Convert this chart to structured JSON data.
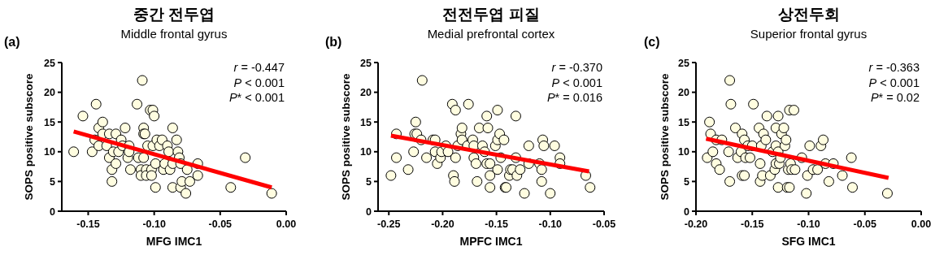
{
  "chart_data": [
    {
      "type": "scatter",
      "title": "중간 전두엽",
      "subtitle": "Middle frontal gyrus",
      "xlabel": "MFG IMC1",
      "ylabel": "SOPS positive subscore",
      "annotations": [
        "(a)",
        "r = -0.447",
        "P < 0.001",
        "P* < 0.001"
      ],
      "xlim": [
        -0.17,
        0
      ],
      "xticks": [
        -0.15,
        {
          "value": -0.1,
          "label": "-0.10"
        },
        -0.05,
        {
          "value": 0,
          "label": "0.00"
        }
      ],
      "ylim": [
        0,
        25
      ],
      "yticks": [
        0,
        5,
        10,
        15,
        20,
        25
      ],
      "marker": "circle",
      "series": [
        {
          "type": "scatter",
          "color": "#fffde0",
          "x": [
            -0.161,
            -0.154,
            -0.147,
            -0.144,
            -0.145,
            -0.142,
            -0.139,
            -0.142,
            -0.139,
            -0.136,
            -0.134,
            -0.134,
            -0.132,
            -0.132,
            -0.131,
            -0.129,
            -0.129,
            -0.127,
            -0.125,
            -0.124,
            -0.122,
            -0.12,
            -0.119,
            -0.118,
            -0.119,
            -0.113,
            -0.112,
            -0.11,
            -0.11,
            -0.109,
            -0.108,
            -0.108,
            -0.108,
            -0.107,
            -0.106,
            -0.106,
            -0.105,
            -0.103,
            -0.101,
            -0.1,
            -0.102,
            -0.102,
            -0.101,
            -0.099,
            -0.099,
            -0.098,
            -0.096,
            -0.094,
            -0.093,
            -0.092,
            -0.09,
            -0.089,
            -0.088,
            -0.086,
            -0.086,
            -0.086,
            -0.083,
            -0.082,
            -0.081,
            -0.08,
            -0.08,
            -0.079,
            -0.076,
            -0.075,
            -0.073,
            -0.067,
            -0.067,
            -0.042,
            -0.031,
            -0.011
          ],
          "values": [
            10,
            16,
            10,
            18,
            12,
            14,
            15,
            11,
            13,
            11,
            9,
            13,
            7,
            5,
            10,
            13,
            8,
            10,
            12,
            11,
            14,
            9,
            11,
            7,
            10,
            18,
            9,
            7,
            6,
            22,
            9,
            14,
            13,
            13,
            7,
            6,
            11,
            17,
            17,
            16,
            7,
            6,
            11,
            4,
            8,
            12,
            11,
            12,
            7,
            8,
            11,
            10,
            7,
            8,
            14,
            4,
            12,
            10,
            9,
            8,
            4,
            5,
            3,
            7,
            5,
            6,
            8,
            4,
            9,
            3
          ]
        },
        {
          "type": "line",
          "marker": "none",
          "color": "#ff0000",
          "x": [
            -0.161,
            -0.011
          ],
          "values": [
            13.4,
            4.0
          ]
        }
      ]
    },
    {
      "type": "scatter",
      "title": "전전두엽 피질",
      "subtitle": "Medial prefrontal cortex",
      "xlabel": "MPFC IMC1",
      "ylabel": "SOPS positive subscore",
      "annotations": [
        "(b)",
        "r = -0.370",
        "P < 0.001",
        "P* = 0.016"
      ],
      "xlim": [
        -0.26,
        -0.05
      ],
      "xticks": [
        -0.25,
        {
          "value": -0.2,
          "label": "-0.20"
        },
        -0.15,
        {
          "value": -0.1,
          "label": "-0.10"
        },
        -0.05
      ],
      "ylim": [
        0,
        25
      ],
      "yticks": [
        0,
        5,
        10,
        15,
        20,
        25
      ],
      "marker": "circle",
      "series": [
        {
          "type": "scatter",
          "color": "#fffde0",
          "x": [
            -0.248,
            -0.243,
            -0.243,
            -0.232,
            -0.227,
            -0.226,
            -0.225,
            -0.224,
            -0.22,
            -0.219,
            -0.215,
            -0.209,
            -0.207,
            -0.207,
            -0.205,
            -0.202,
            -0.201,
            -0.197,
            -0.195,
            -0.191,
            -0.19,
            -0.189,
            -0.188,
            -0.188,
            -0.186,
            -0.183,
            -0.182,
            -0.182,
            -0.177,
            -0.176,
            -0.172,
            -0.171,
            -0.171,
            -0.169,
            -0.168,
            -0.166,
            -0.163,
            -0.161,
            -0.159,
            -0.159,
            -0.158,
            -0.156,
            -0.156,
            -0.156,
            -0.151,
            -0.149,
            -0.149,
            -0.149,
            -0.147,
            -0.146,
            -0.143,
            -0.142,
            -0.141,
            -0.138,
            -0.137,
            -0.135,
            -0.132,
            -0.132,
            -0.131,
            -0.128,
            -0.124,
            -0.12,
            -0.12,
            -0.11,
            -0.108,
            -0.108,
            -0.107,
            -0.106,
            -0.1,
            -0.096,
            -0.091,
            -0.091,
            -0.067,
            -0.063
          ],
          "values": [
            6,
            13,
            9,
            7,
            10,
            13,
            15,
            13,
            12,
            22,
            9,
            12,
            12,
            10,
            8,
            9,
            10,
            11,
            10,
            18,
            6,
            5,
            17,
            9,
            11,
            13,
            14,
            12,
            11,
            18,
            12,
            9,
            11,
            8,
            5,
            14,
            11,
            10,
            8,
            16,
            14,
            8,
            4,
            6,
            11,
            17,
            7,
            12,
            13,
            9,
            12,
            4,
            4,
            6,
            7,
            7,
            16,
            9,
            6,
            7,
            3,
            8,
            11,
            8,
            7,
            5,
            12,
            11,
            3,
            11,
            9,
            8,
            6,
            4
          ]
        },
        {
          "type": "line",
          "marker": "none",
          "color": "#ff0000",
          "x": [
            -0.248,
            -0.064
          ],
          "values": [
            12.7,
            6.7
          ]
        }
      ]
    },
    {
      "type": "scatter",
      "title": "상전두회",
      "subtitle": "Superior frontal gyrus",
      "xlabel": "SFG IMC1",
      "ylabel": "SOPS positive subscore",
      "annotations": [
        "(c)",
        "r = -0.363",
        "P < 0.001",
        "P* = 0.02"
      ],
      "xlim": [
        -0.2,
        0
      ],
      "xticks": [
        {
          "value": -0.2,
          "label": "-0.20"
        },
        -0.15,
        {
          "value": -0.1,
          "label": "-0.10"
        },
        -0.05,
        {
          "value": 0,
          "label": "0.00"
        }
      ],
      "ylim": [
        0,
        25
      ],
      "yticks": [
        0,
        5,
        10,
        15,
        20,
        25
      ],
      "marker": "circle",
      "series": [
        {
          "type": "scatter",
          "color": "#fffde0",
          "x": [
            -0.19,
            -0.188,
            -0.187,
            -0.185,
            -0.182,
            -0.182,
            -0.179,
            -0.177,
            -0.171,
            -0.17,
            -0.17,
            -0.169,
            -0.165,
            -0.163,
            -0.16,
            -0.159,
            -0.159,
            -0.157,
            -0.157,
            -0.156,
            -0.154,
            -0.152,
            -0.15,
            -0.149,
            -0.144,
            -0.143,
            -0.143,
            -0.142,
            -0.141,
            -0.14,
            -0.138,
            -0.137,
            -0.134,
            -0.132,
            -0.13,
            -0.129,
            -0.129,
            -0.129,
            -0.127,
            -0.127,
            -0.127,
            -0.126,
            -0.125,
            -0.124,
            -0.122,
            -0.121,
            -0.12,
            -0.119,
            -0.118,
            -0.117,
            -0.117,
            -0.113,
            -0.116,
            -0.115,
            -0.112,
            -0.106,
            -0.102,
            -0.101,
            -0.099,
            -0.096,
            -0.092,
            -0.089,
            -0.087,
            -0.085,
            -0.082,
            -0.078,
            -0.07,
            -0.062,
            -0.061,
            -0.03
          ],
          "values": [
            9,
            15,
            13,
            10,
            12,
            8,
            7,
            12,
            10,
            22,
            5,
            18,
            14,
            9,
            10,
            13,
            6,
            6,
            12,
            9,
            11,
            9,
            11,
            18,
            14,
            8,
            5,
            11,
            6,
            13,
            12,
            16,
            6,
            10,
            7,
            14,
            11,
            8,
            10,
            4,
            16,
            8,
            9,
            13,
            14,
            11,
            12,
            4,
            7,
            4,
            17,
            17,
            8,
            7,
            7,
            9,
            3,
            6,
            11,
            7,
            7,
            11,
            12,
            8,
            5,
            8,
            6,
            9,
            4,
            3
          ]
        },
        {
          "type": "line",
          "marker": "none",
          "color": "#ff0000",
          "x": [
            -0.191,
            -0.029
          ],
          "values": [
            12.2,
            5.6
          ]
        }
      ]
    }
  ]
}
